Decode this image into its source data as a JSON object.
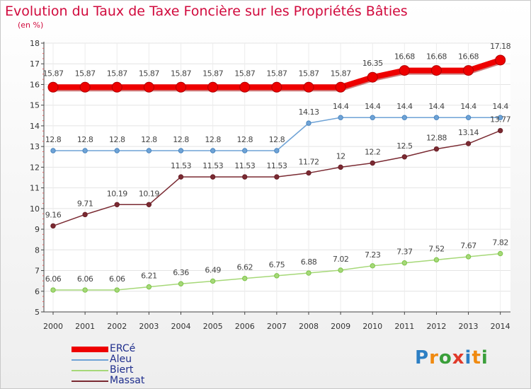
{
  "title": "Evolution du Taux de Taxe Foncière sur les Propriétés Bâties",
  "subtitle": "(en %)",
  "logo": "Proxiti",
  "chart_data": {
    "type": "line",
    "title": "Evolution du Taux de Taxe Foncière sur les Propriétés Bâties",
    "ylabel": "(en %)",
    "xlabel": "",
    "ylim": [
      5,
      18
    ],
    "yticks": [
      "5",
      "6",
      "7",
      "8",
      "9",
      "10",
      "11",
      "12",
      "13",
      "14",
      "15",
      "16",
      "17",
      "18"
    ],
    "categories": [
      "2000",
      "2001",
      "2002",
      "2003",
      "2004",
      "2005",
      "2006",
      "2007",
      "2008",
      "2009",
      "2010",
      "2011",
      "2012",
      "2013",
      "2014"
    ],
    "series": [
      {
        "name": "ERCé",
        "color": "#ee0000",
        "values": [
          15.87,
          15.87,
          15.87,
          15.87,
          15.87,
          15.87,
          15.87,
          15.87,
          15.87,
          15.87,
          16.35,
          16.68,
          16.68,
          16.68,
          17.18
        ],
        "labels": [
          "15.87",
          "15.87",
          "15.87",
          "15.87",
          "15.87",
          "15.87",
          "15.87",
          "15.87",
          "15.87",
          "15.87",
          "16.35",
          "16.68",
          "16.68",
          "16.68",
          "17.18"
        ]
      },
      {
        "name": "Aleu",
        "color": "#6fa3d6",
        "marker": "#4a86c0",
        "values": [
          12.8,
          12.8,
          12.8,
          12.8,
          12.8,
          12.8,
          12.8,
          12.8,
          14.13,
          14.4,
          14.4,
          14.4,
          14.4,
          14.4,
          14.4
        ],
        "labels": [
          "12.8",
          "12.8",
          "12.8",
          "12.8",
          "12.8",
          "12.8",
          "12.8",
          "12.8",
          "14.13",
          "14.4",
          "14.4",
          "14.4",
          "14.4",
          "14.4",
          "14.4"
        ]
      },
      {
        "name": "Biert",
        "color": "#a6d878",
        "marker": "#7cc448",
        "values": [
          6.06,
          6.06,
          6.06,
          6.21,
          6.36,
          6.49,
          6.62,
          6.75,
          6.88,
          7.02,
          7.23,
          7.37,
          7.52,
          7.67,
          7.82
        ],
        "labels": [
          "6.06",
          "6.06",
          "6.06",
          "6.21",
          "6.36",
          "6.49",
          "6.62",
          "6.75",
          "6.88",
          "7.02",
          "7.23",
          "7.37",
          "7.52",
          "7.67",
          "7.82"
        ]
      },
      {
        "name": "Massat",
        "color": "#7a2a32",
        "marker": "#6a1f27",
        "values": [
          9.16,
          9.71,
          10.19,
          10.19,
          11.53,
          11.53,
          11.53,
          11.53,
          11.72,
          12,
          12.2,
          12.5,
          12.88,
          13.14,
          13.77
        ],
        "labels": [
          "9.16",
          "9.71",
          "10.19",
          "10.19",
          "11.53",
          "11.53",
          "11.53",
          "11.53",
          "11.72",
          "12",
          "12.2",
          "12.5",
          "12.88",
          "13.14",
          "13.77"
        ]
      }
    ],
    "legend": "bottom-left"
  }
}
